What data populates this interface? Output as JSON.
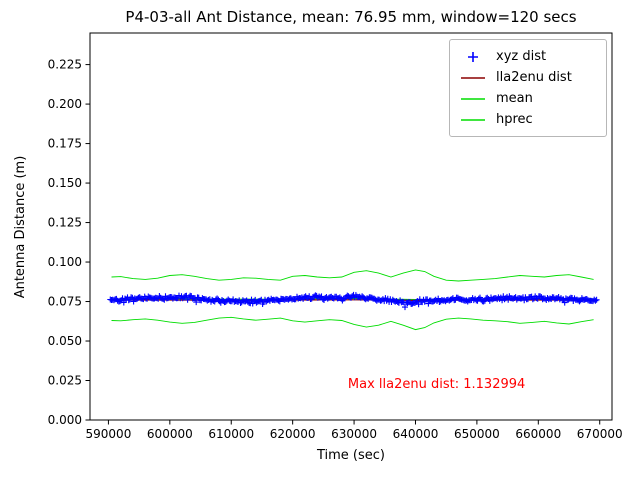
{
  "title": "P4-03-all Ant Distance, mean: 76.95 mm, window=120 secs",
  "legend": {
    "items": [
      {
        "label": "xyz dist",
        "color": "#0000ff",
        "marker": "plus"
      },
      {
        "label": "lla2enu dist",
        "color": "#8b0000",
        "marker": "line"
      },
      {
        "label": "mean",
        "color": "#00dd00",
        "marker": "line"
      },
      {
        "label": "hprec",
        "color": "#00dd00",
        "marker": "line"
      }
    ]
  },
  "chart_data": {
    "type": "line",
    "title": "P4-03-all Ant Distance, mean: 76.95 mm, window=120 secs",
    "xlabel": "Time (sec)",
    "ylabel": "Antenna Distance (m)",
    "xlim": [
      587000,
      672000
    ],
    "ylim": [
      0,
      0.245
    ],
    "grid": false,
    "legend_position": "upper right",
    "xticks": [
      590000,
      600000,
      610000,
      620000,
      630000,
      640000,
      650000,
      660000,
      670000
    ],
    "xticklabels": [
      "590000",
      "600000",
      "610000",
      "620000",
      "630000",
      "640000",
      "650000",
      "660000",
      "670000"
    ],
    "yticks": [
      0,
      0.025,
      0.05,
      0.075,
      0.1,
      0.125,
      0.15,
      0.175,
      0.2,
      0.225
    ],
    "yticklabels": [
      "0.000",
      "0.025",
      "0.050",
      "0.075",
      "0.100",
      "0.125",
      "0.150",
      "0.175",
      "0.200",
      "0.225"
    ],
    "annotation": {
      "text": "Max lla2enu dist: 1.132994",
      "color": "#ff0000",
      "x": 629000,
      "y": 0.019
    },
    "series": [
      {
        "name": "hprec-upper",
        "legend": "hprec",
        "color": "#00dd00",
        "style": "line",
        "width": 0.9,
        "x": [
          590500,
          592000,
          594000,
          596000,
          598000,
          600000,
          602000,
          604000,
          606000,
          608000,
          610000,
          612000,
          614000,
          616000,
          618000,
          620000,
          622000,
          624000,
          626000,
          628000,
          630000,
          632000,
          634000,
          636000,
          638000,
          640000,
          641500,
          643000,
          645000,
          647000,
          649000,
          651000,
          653000,
          655000,
          657000,
          659000,
          661000,
          663000,
          665000,
          667000,
          669000
        ],
        "y": [
          0.0905,
          0.0908,
          0.0895,
          0.089,
          0.0898,
          0.0915,
          0.092,
          0.091,
          0.0895,
          0.0885,
          0.089,
          0.09,
          0.0898,
          0.089,
          0.0885,
          0.091,
          0.0915,
          0.0905,
          0.09,
          0.0905,
          0.0935,
          0.0945,
          0.093,
          0.0905,
          0.093,
          0.095,
          0.094,
          0.091,
          0.0885,
          0.088,
          0.0885,
          0.089,
          0.0895,
          0.0905,
          0.0915,
          0.091,
          0.0905,
          0.0915,
          0.092,
          0.0905,
          0.089
        ]
      },
      {
        "name": "hprec-lower",
        "legend": "hprec",
        "color": "#00dd00",
        "style": "line",
        "width": 0.9,
        "x": [
          590500,
          592000,
          594000,
          596000,
          598000,
          600000,
          602000,
          604000,
          606000,
          608000,
          610000,
          612000,
          614000,
          616000,
          618000,
          620000,
          622000,
          624000,
          626000,
          628000,
          630000,
          632000,
          634000,
          636000,
          638000,
          640000,
          641500,
          643000,
          645000,
          647000,
          649000,
          651000,
          653000,
          655000,
          657000,
          659000,
          661000,
          663000,
          665000,
          667000,
          669000
        ],
        "y": [
          0.063,
          0.0628,
          0.0635,
          0.064,
          0.0632,
          0.062,
          0.0612,
          0.0618,
          0.0632,
          0.0645,
          0.065,
          0.064,
          0.0632,
          0.0638,
          0.0645,
          0.0628,
          0.062,
          0.0628,
          0.0635,
          0.063,
          0.0605,
          0.0588,
          0.06,
          0.0625,
          0.06,
          0.0572,
          0.0585,
          0.0615,
          0.0638,
          0.0645,
          0.064,
          0.0632,
          0.0628,
          0.0622,
          0.0612,
          0.0618,
          0.0625,
          0.0615,
          0.0608,
          0.0622,
          0.0635
        ]
      },
      {
        "name": "mean",
        "legend": "mean",
        "color": "#00dd00",
        "style": "line",
        "width": 1,
        "x": [
          590500,
          600000,
          610000,
          620000,
          630000,
          640000,
          650000,
          660000,
          669000
        ],
        "y": [
          0.0766,
          0.0767,
          0.0764,
          0.0766,
          0.0769,
          0.0763,
          0.0765,
          0.0767,
          0.0766
        ]
      },
      {
        "name": "lla2enu-dist",
        "legend": "lla2enu dist",
        "color": "#8b0000",
        "style": "line",
        "width": 1.2,
        "x": [
          590300,
          600000,
          610000,
          620000,
          630000,
          640000,
          650000,
          660000,
          669500
        ],
        "y": [
          0.0759,
          0.076,
          0.0758,
          0.076,
          0.0761,
          0.0757,
          0.0759,
          0.076,
          0.0759
        ]
      },
      {
        "name": "xyz-dist",
        "legend": "xyz dist",
        "color": "#0000ff",
        "style": "plus",
        "x_start": 590300,
        "x_end": 669500,
        "step": 200,
        "amp": 0.0016,
        "seed": 42,
        "baseline_x": [
          590300,
          594000,
          598000,
          602000,
          606000,
          610000,
          614000,
          618000,
          622000,
          626000,
          630000,
          634000,
          638000,
          642000,
          646000,
          650000,
          654000,
          658000,
          662000,
          666000,
          669500
        ],
        "baseline_y": [
          0.0762,
          0.0768,
          0.0772,
          0.0778,
          0.0765,
          0.0748,
          0.0752,
          0.076,
          0.0775,
          0.0772,
          0.0778,
          0.0765,
          0.0742,
          0.075,
          0.076,
          0.0762,
          0.0768,
          0.0772,
          0.077,
          0.0765,
          0.076
        ]
      }
    ]
  }
}
